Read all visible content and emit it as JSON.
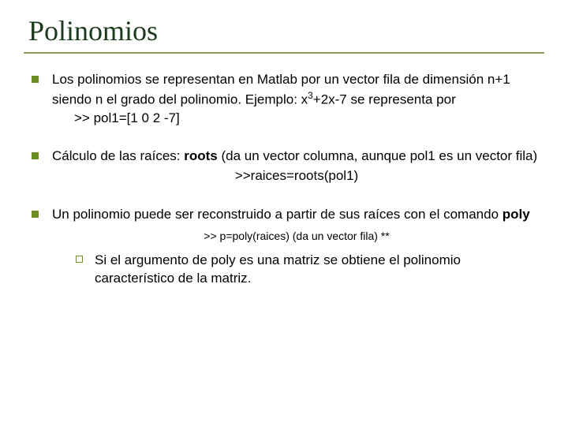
{
  "colors": {
    "title_text": "#1d3a1d",
    "title_underline": "#8a9a5b",
    "bullet_l1": "#6b8e23",
    "bullet_l2_border": "#6b8e23",
    "body_text": "#000000"
  },
  "title": "Polinomios",
  "items": [
    {
      "pre": "Los polinomios se representan en Matlab por un vector fila de dimensión n+1 siendo n el grado del polinomio. Ejemplo: x",
      "sup": "3",
      "post": "+2x-7 se representa por",
      "code_indent": ">> pol1=[1 0 2 -7]"
    },
    {
      "pre": "Cálculo de las raíces: ",
      "bold": "roots",
      "post": " (da un vector columna, aunque pol1 es un vector fila)",
      "code_center": ">>raices=roots(pol1)"
    },
    {
      "pre": "Un polinomio puede ser reconstruido a partir de sus raíces con el comando ",
      "bold": "poly",
      "small_cmd": ">> p=poly(raices) (da un vector fila) **",
      "sub": {
        "text": "Si el argumento de poly es una matriz se obtiene el polinomio característico de la matriz."
      }
    }
  ]
}
